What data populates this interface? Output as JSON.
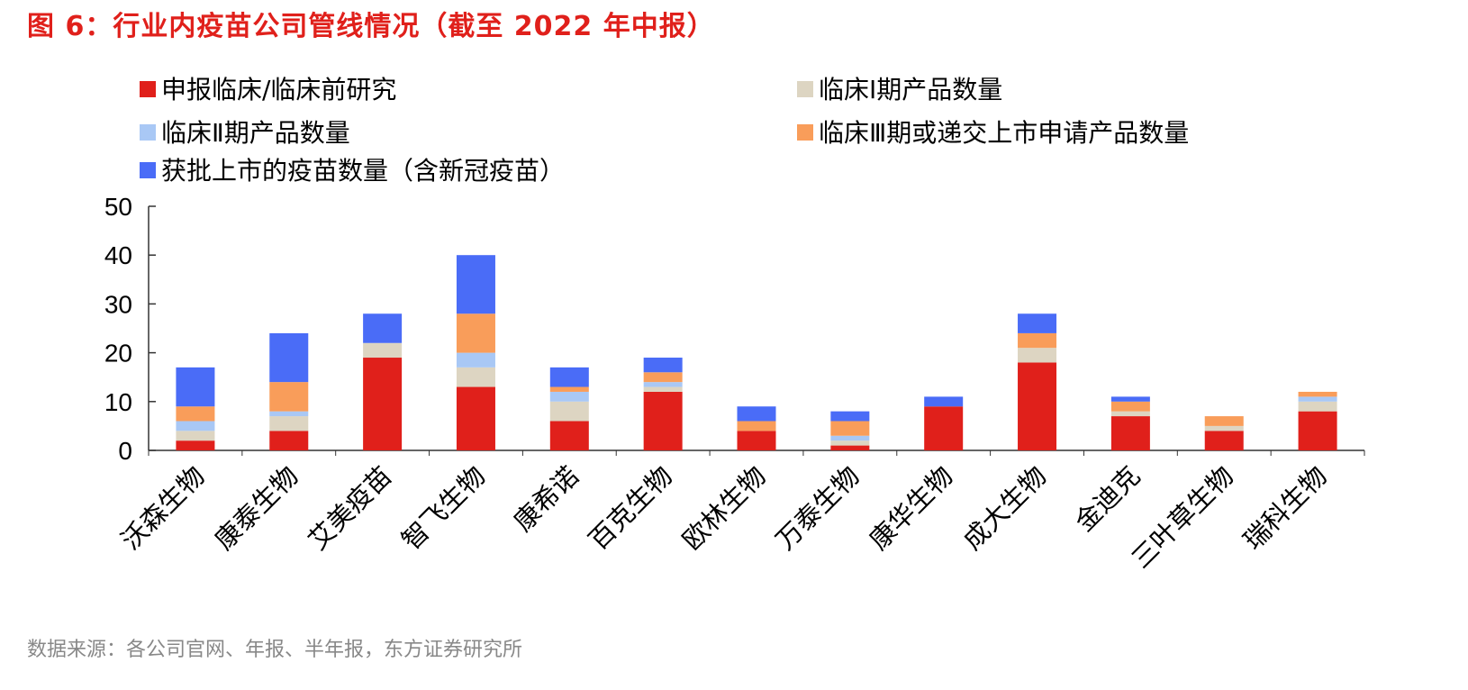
{
  "title": "图 6：行业内疫苗公司管线情况（截至 2022 年中报）",
  "source": "数据来源：各公司官网、年报、半年报，东方证券研究所",
  "chart_data": {
    "type": "bar",
    "stacked": true,
    "categories": [
      "沃森生物",
      "康泰生物",
      "艾美疫苗",
      "智飞生物",
      "康希诺",
      "百克生物",
      "欧林生物",
      "万泰生物",
      "康华生物",
      "成大生物",
      "金迪克",
      "三叶草生物",
      "瑞科生物"
    ],
    "series": [
      {
        "name": "申报临床/临床前研究",
        "color": "#E0201B",
        "values": [
          2,
          4,
          19,
          13,
          6,
          12,
          4,
          1,
          9,
          18,
          7,
          4,
          8
        ]
      },
      {
        "name": "临床I期产品数量",
        "color": "#DDD5C2",
        "values": [
          2,
          3,
          3,
          4,
          4,
          1,
          0,
          1,
          0,
          3,
          1,
          1,
          2
        ]
      },
      {
        "name": "临床Ⅱ期产品数量",
        "color": "#A9C8F5",
        "values": [
          2,
          1,
          0,
          3,
          2,
          1,
          0,
          1,
          0,
          0,
          0,
          0,
          1
        ]
      },
      {
        "name": "临床Ⅲ期或递交上市申请产品数量",
        "color": "#F99D5A",
        "values": [
          3,
          6,
          0,
          8,
          1,
          2,
          2,
          3,
          0,
          3,
          2,
          2,
          1
        ]
      },
      {
        "name": "获批上市的疫苗数量（含新冠疫苗）",
        "color": "#4A6CF7",
        "values": [
          8,
          10,
          6,
          12,
          4,
          3,
          3,
          2,
          2,
          4,
          1,
          0,
          0
        ]
      }
    ],
    "ylim": [
      0,
      50
    ],
    "yticks": [
      0,
      10,
      20,
      30,
      40,
      50
    ],
    "legend": "top",
    "grid": false
  }
}
